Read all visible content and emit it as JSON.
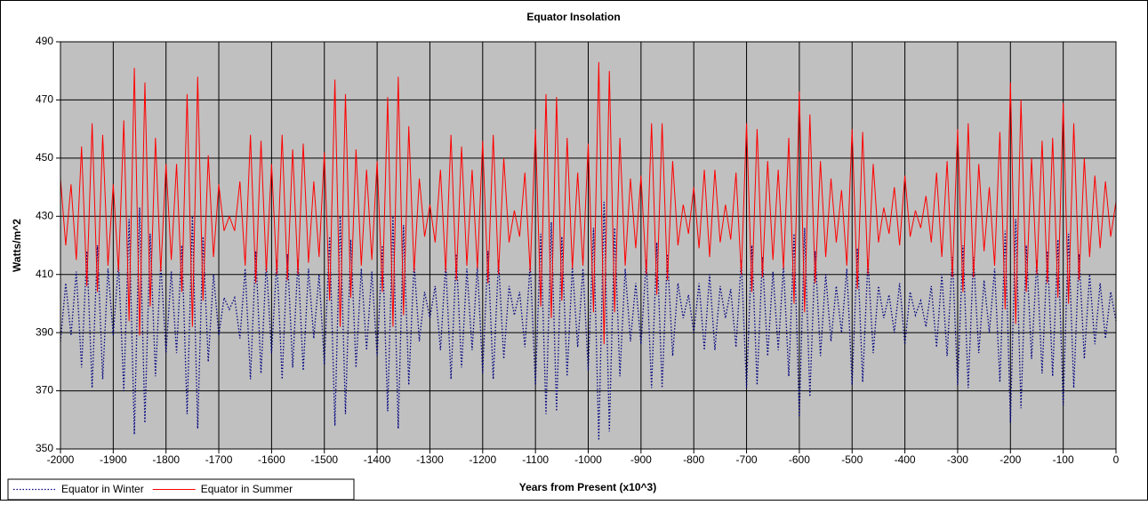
{
  "chart_data": {
    "type": "line",
    "title": "Equator Insolation",
    "x_label": "Years from Present (x10^3)",
    "y_label": "Watts/m^2",
    "xlim": [
      -2000,
      0
    ],
    "xticks": [
      -2000,
      -1900,
      -1800,
      -1700,
      -1600,
      -1500,
      -1400,
      -1300,
      -1200,
      -1100,
      -1000,
      -900,
      -800,
      -700,
      -600,
      -500,
      -400,
      -300,
      -200,
      -100,
      0
    ],
    "ylim": [
      350,
      490
    ],
    "yticks": [
      350,
      370,
      390,
      410,
      430,
      450,
      470,
      490
    ],
    "grid": true,
    "legend": "bottom-left",
    "x": [
      -2000,
      -1990,
      -1980,
      -1970,
      -1960,
      -1950,
      -1940,
      -1930,
      -1920,
      -1910,
      -1900,
      -1890,
      -1880,
      -1870,
      -1860,
      -1850,
      -1840,
      -1830,
      -1820,
      -1810,
      -1800,
      -1790,
      -1780,
      -1770,
      -1760,
      -1750,
      -1740,
      -1730,
      -1720,
      -1710,
      -1700,
      -1690,
      -1680,
      -1670,
      -1660,
      -1650,
      -1640,
      -1630,
      -1620,
      -1610,
      -1600,
      -1590,
      -1580,
      -1570,
      -1560,
      -1550,
      -1540,
      -1530,
      -1520,
      -1510,
      -1500,
      -1490,
      -1480,
      -1470,
      -1460,
      -1450,
      -1440,
      -1430,
      -1420,
      -1410,
      -1400,
      -1390,
      -1380,
      -1370,
      -1360,
      -1350,
      -1340,
      -1330,
      -1320,
      -1310,
      -1300,
      -1290,
      -1280,
      -1270,
      -1260,
      -1250,
      -1240,
      -1230,
      -1220,
      -1210,
      -1200,
      -1190,
      -1180,
      -1170,
      -1160,
      -1150,
      -1140,
      -1130,
      -1120,
      -1110,
      -1100,
      -1090,
      -1080,
      -1070,
      -1060,
      -1050,
      -1040,
      -1030,
      -1020,
      -1010,
      -1000,
      -990,
      -980,
      -970,
      -960,
      -950,
      -940,
      -930,
      -920,
      -910,
      -900,
      -890,
      -880,
      -870,
      -860,
      -850,
      -840,
      -830,
      -820,
      -810,
      -800,
      -790,
      -780,
      -770,
      -760,
      -750,
      -740,
      -730,
      -720,
      -710,
      -700,
      -690,
      -680,
      -670,
      -660,
      -650,
      -640,
      -630,
      -620,
      -610,
      -600,
      -590,
      -580,
      -570,
      -560,
      -550,
      -540,
      -530,
      -520,
      -510,
      -500,
      -490,
      -480,
      -470,
      -460,
      -450,
      -440,
      -430,
      -420,
      -410,
      -400,
      -390,
      -380,
      -370,
      -360,
      -350,
      -340,
      -330,
      -320,
      -310,
      -300,
      -290,
      -280,
      -270,
      -260,
      -250,
      -240,
      -230,
      -220,
      -210,
      -200,
      -190,
      -180,
      -170,
      -160,
      -150,
      -140,
      -130,
      -120,
      -110,
      -100,
      -90,
      -80,
      -70,
      -60,
      -50,
      -40,
      -30,
      -20,
      -10,
      0
    ],
    "series": [
      {
        "name": "Equator in Winter",
        "color": "#000080",
        "style": "dotted",
        "values": [
          387,
          407,
          389,
          411,
          378,
          418,
          371,
          420,
          374,
          412,
          389,
          414,
          370,
          429,
          355,
          433,
          359,
          424,
          375,
          414,
          383,
          411,
          383,
          420,
          362,
          430,
          357,
          423,
          380,
          410,
          389,
          402,
          398,
          402,
          388,
          412,
          374,
          418,
          376,
          414,
          383,
          415,
          374,
          417,
          378,
          415,
          377,
          412,
          388,
          410,
          379,
          423,
          358,
          430,
          362,
          422,
          378,
          412,
          384,
          411,
          382,
          420,
          363,
          430,
          357,
          427,
          372,
          414,
          387,
          404,
          395,
          406,
          384,
          414,
          374,
          417,
          378,
          412,
          384,
          413,
          376,
          418,
          374,
          415,
          381,
          406,
          396,
          404,
          385,
          414,
          372,
          424,
          362,
          428,
          363,
          423,
          375,
          413,
          385,
          412,
          377,
          426,
          353,
          435,
          356,
          426,
          375,
          412,
          387,
          407,
          386,
          415,
          371,
          421,
          371,
          417,
          382,
          407,
          395,
          403,
          390,
          407,
          384,
          410,
          384,
          406,
          395,
          405,
          385,
          415,
          371,
          420,
          372,
          416,
          382,
          411,
          384,
          413,
          375,
          424,
          361,
          426,
          368,
          418,
          382,
          410,
          387,
          406,
          390,
          412,
          372,
          419,
          373,
          415,
          383,
          406,
          395,
          403,
          390,
          407,
          386,
          404,
          396,
          401,
          392,
          406,
          385,
          410,
          382,
          416,
          372,
          420,
          371,
          416,
          383,
          408,
          390,
          412,
          373,
          425,
          359,
          429,
          364,
          420,
          381,
          415,
          376,
          418,
          375,
          422,
          365,
          424,
          371,
          417,
          381,
          410,
          386,
          407,
          388,
          404,
          394
        ]
      },
      {
        "name": "Equator in Summer",
        "color": "#ff0000",
        "style": "solid",
        "values": [
          443,
          420,
          441,
          415,
          454,
          406,
          462,
          404,
          458,
          413,
          441,
          411,
          463,
          394,
          481,
          389,
          476,
          399,
          457,
          411,
          448,
          415,
          448,
          404,
          472,
          392,
          478,
          401,
          451,
          416,
          441,
          425,
          430,
          425,
          442,
          413,
          458,
          407,
          456,
          411,
          448,
          410,
          458,
          408,
          453,
          410,
          455,
          414,
          442,
          416,
          452,
          401,
          477,
          392,
          472,
          402,
          453,
          413,
          446,
          415,
          449,
          404,
          471,
          392,
          478,
          396,
          461,
          411,
          443,
          423,
          434,
          421,
          446,
          411,
          458,
          408,
          454,
          413,
          446,
          412,
          456,
          407,
          458,
          410,
          450,
          421,
          432,
          423,
          445,
          411,
          460,
          399,
          472,
          395,
          471,
          401,
          457,
          412,
          445,
          413,
          455,
          397,
          483,
          386,
          480,
          397,
          457,
          413,
          443,
          419,
          444,
          410,
          462,
          403,
          462,
          408,
          449,
          420,
          434,
          424,
          440,
          419,
          446,
          416,
          446,
          421,
          434,
          422,
          445,
          410,
          462,
          404,
          460,
          409,
          449,
          415,
          446,
          412,
          457,
          400,
          473,
          397,
          465,
          407,
          449,
          416,
          443,
          421,
          439,
          413,
          460,
          405,
          459,
          410,
          448,
          421,
          433,
          424,
          440,
          420,
          444,
          423,
          432,
          426,
          437,
          421,
          445,
          416,
          449,
          409,
          460,
          404,
          462,
          409,
          448,
          418,
          440,
          413,
          459,
          398,
          476,
          393,
          470,
          404,
          450,
          410,
          456,
          407,
          457,
          402,
          469,
          400,
          462,
          408,
          450,
          416,
          444,
          419,
          442,
          423,
          435
        ]
      }
    ]
  }
}
